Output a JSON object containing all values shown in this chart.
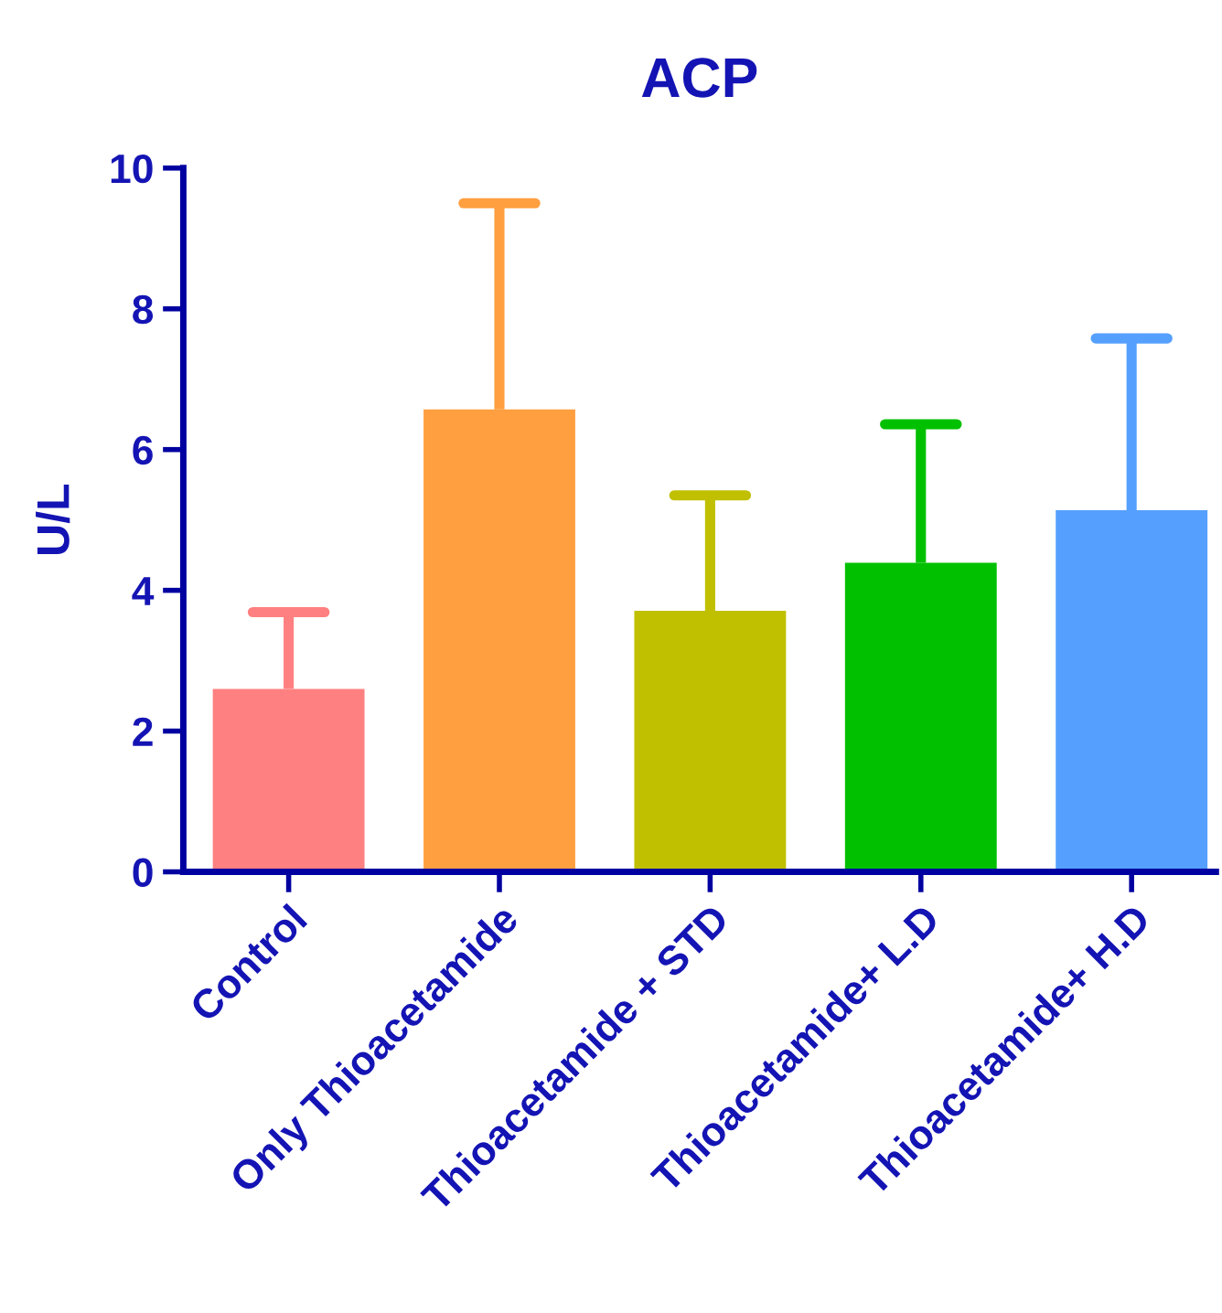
{
  "chart_data": {
    "type": "bar",
    "title": "ACP",
    "ylabel": "U/L",
    "categories": [
      "Control",
      "Only Thioacetamide",
      "Thioacetamide + STD",
      "Thioacetamide+ L.D",
      "Thioacetamide+ H.D"
    ],
    "values": [
      2.6,
      6.57,
      3.71,
      4.39,
      5.14
    ],
    "colors": [
      "#ff8080",
      "#ff9f40",
      "#c0c000",
      "#00c000",
      "#55a0ff"
    ],
    "errors": [
      [
        2.6,
        3.69
      ],
      [
        6.57,
        9.5
      ],
      [
        3.71,
        5.35
      ],
      [
        4.39,
        6.36
      ],
      [
        5.14,
        7.58
      ]
    ],
    "ylim": [
      0,
      10
    ],
    "yticks": [
      0,
      2,
      4,
      6,
      8,
      10
    ],
    "grid": false,
    "legend": false
  }
}
